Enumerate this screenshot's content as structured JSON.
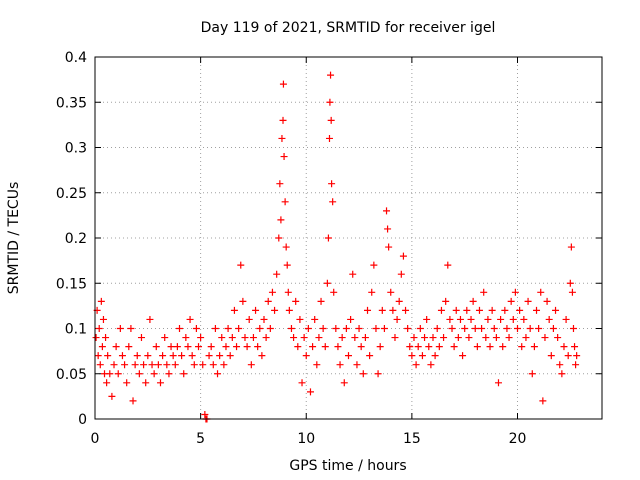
{
  "chart_data": {
    "type": "scatter",
    "title": "Day 119 of 2021, SRMTID for receiver igel",
    "xlabel": "GPS time / hours",
    "ylabel": "SRMTID / TECUs",
    "xlim": [
      0,
      24
    ],
    "ylim": [
      0,
      0.4
    ],
    "xticks": [
      0,
      5,
      10,
      15,
      20
    ],
    "xtick_labels": [
      "0",
      "5",
      "10",
      "15",
      "20"
    ],
    "yticks": [
      0,
      0.05,
      0.1,
      0.15,
      0.2,
      0.25,
      0.3,
      0.35,
      0.4
    ],
    "ytick_labels": [
      "0",
      "0.05",
      "0.1",
      "0.15",
      "0.2",
      "0.25",
      "0.3",
      "0.35",
      "0.4"
    ],
    "grid": true,
    "marker": "+",
    "series": [
      {
        "name": "SRMTID",
        "color": "#ff0000",
        "points": [
          [
            0.05,
            0.09
          ],
          [
            0.1,
            0.12
          ],
          [
            0.15,
            0.07
          ],
          [
            0.2,
            0.1
          ],
          [
            0.25,
            0.06
          ],
          [
            0.3,
            0.13
          ],
          [
            0.35,
            0.08
          ],
          [
            0.4,
            0.11
          ],
          [
            0.45,
            0.05
          ],
          [
            0.5,
            0.09
          ],
          [
            0.55,
            0.04
          ],
          [
            0.6,
            0.07
          ],
          [
            0.7,
            0.05
          ],
          [
            0.8,
            0.025
          ],
          [
            0.9,
            0.06
          ],
          [
            1.0,
            0.08
          ],
          [
            1.1,
            0.05
          ],
          [
            1.2,
            0.1
          ],
          [
            1.3,
            0.07
          ],
          [
            1.4,
            0.06
          ],
          [
            1.5,
            0.04
          ],
          [
            1.6,
            0.08
          ],
          [
            1.7,
            0.1
          ],
          [
            1.8,
            0.02
          ],
          [
            1.9,
            0.06
          ],
          [
            2.0,
            0.07
          ],
          [
            2.1,
            0.05
          ],
          [
            2.2,
            0.09
          ],
          [
            2.3,
            0.06
          ],
          [
            2.4,
            0.04
          ],
          [
            2.5,
            0.07
          ],
          [
            2.6,
            0.11
          ],
          [
            2.7,
            0.06
          ],
          [
            2.8,
            0.05
          ],
          [
            2.9,
            0.08
          ],
          [
            3.0,
            0.06
          ],
          [
            3.1,
            0.04
          ],
          [
            3.2,
            0.07
          ],
          [
            3.3,
            0.09
          ],
          [
            3.4,
            0.06
          ],
          [
            3.5,
            0.05
          ],
          [
            3.6,
            0.08
          ],
          [
            3.7,
            0.07
          ],
          [
            3.8,
            0.06
          ],
          [
            3.9,
            0.08
          ],
          [
            4.0,
            0.1
          ],
          [
            4.1,
            0.07
          ],
          [
            4.2,
            0.05
          ],
          [
            4.3,
            0.09
          ],
          [
            4.4,
            0.08
          ],
          [
            4.5,
            0.11
          ],
          [
            4.6,
            0.07
          ],
          [
            4.7,
            0.06
          ],
          [
            4.8,
            0.1
          ],
          [
            4.9,
            0.08
          ],
          [
            5.0,
            0.09
          ],
          [
            5.1,
            0.06
          ],
          [
            5.2,
            0.005
          ],
          [
            5.25,
            0.0
          ],
          [
            5.3,
            0.0
          ],
          [
            5.4,
            0.07
          ],
          [
            5.5,
            0.08
          ],
          [
            5.6,
            0.06
          ],
          [
            5.7,
            0.1
          ],
          [
            5.8,
            0.05
          ],
          [
            5.9,
            0.07
          ],
          [
            6.0,
            0.09
          ],
          [
            6.1,
            0.06
          ],
          [
            6.2,
            0.08
          ],
          [
            6.3,
            0.1
          ],
          [
            6.4,
            0.07
          ],
          [
            6.5,
            0.09
          ],
          [
            6.6,
            0.12
          ],
          [
            6.7,
            0.08
          ],
          [
            6.8,
            0.1
          ],
          [
            6.9,
            0.17
          ],
          [
            7.0,
            0.13
          ],
          [
            7.1,
            0.09
          ],
          [
            7.2,
            0.08
          ],
          [
            7.3,
            0.11
          ],
          [
            7.4,
            0.06
          ],
          [
            7.5,
            0.09
          ],
          [
            7.6,
            0.12
          ],
          [
            7.7,
            0.08
          ],
          [
            7.8,
            0.1
          ],
          [
            7.9,
            0.07
          ],
          [
            8.0,
            0.11
          ],
          [
            8.1,
            0.09
          ],
          [
            8.2,
            0.13
          ],
          [
            8.3,
            0.1
          ],
          [
            8.4,
            0.14
          ],
          [
            8.5,
            0.12
          ],
          [
            8.6,
            0.16
          ],
          [
            8.7,
            0.2
          ],
          [
            8.75,
            0.26
          ],
          [
            8.8,
            0.22
          ],
          [
            8.85,
            0.31
          ],
          [
            8.9,
            0.33
          ],
          [
            8.92,
            0.37
          ],
          [
            8.95,
            0.29
          ],
          [
            9.0,
            0.24
          ],
          [
            9.05,
            0.19
          ],
          [
            9.1,
            0.17
          ],
          [
            9.15,
            0.14
          ],
          [
            9.2,
            0.12
          ],
          [
            9.3,
            0.1
          ],
          [
            9.4,
            0.09
          ],
          [
            9.5,
            0.13
          ],
          [
            9.6,
            0.08
          ],
          [
            9.7,
            0.11
          ],
          [
            9.8,
            0.04
          ],
          [
            9.9,
            0.09
          ],
          [
            10.0,
            0.07
          ],
          [
            10.1,
            0.1
          ],
          [
            10.2,
            0.03
          ],
          [
            10.3,
            0.08
          ],
          [
            10.4,
            0.11
          ],
          [
            10.5,
            0.06
          ],
          [
            10.6,
            0.09
          ],
          [
            10.7,
            0.13
          ],
          [
            10.8,
            0.1
          ],
          [
            10.9,
            0.08
          ],
          [
            11.0,
            0.15
          ],
          [
            11.05,
            0.2
          ],
          [
            11.1,
            0.31
          ],
          [
            11.12,
            0.35
          ],
          [
            11.15,
            0.38
          ],
          [
            11.18,
            0.33
          ],
          [
            11.2,
            0.26
          ],
          [
            11.25,
            0.24
          ],
          [
            11.3,
            0.14
          ],
          [
            11.4,
            0.1
          ],
          [
            11.5,
            0.08
          ],
          [
            11.6,
            0.06
          ],
          [
            11.7,
            0.09
          ],
          [
            11.8,
            0.04
          ],
          [
            11.9,
            0.1
          ],
          [
            12.0,
            0.07
          ],
          [
            12.1,
            0.11
          ],
          [
            12.2,
            0.16
          ],
          [
            12.3,
            0.09
          ],
          [
            12.4,
            0.06
          ],
          [
            12.5,
            0.1
          ],
          [
            12.6,
            0.08
          ],
          [
            12.7,
            0.05
          ],
          [
            12.8,
            0.09
          ],
          [
            12.9,
            0.12
          ],
          [
            13.0,
            0.07
          ],
          [
            13.1,
            0.14
          ],
          [
            13.2,
            0.17
          ],
          [
            13.3,
            0.1
          ],
          [
            13.4,
            0.05
          ],
          [
            13.5,
            0.08
          ],
          [
            13.6,
            0.12
          ],
          [
            13.7,
            0.1
          ],
          [
            13.8,
            0.23
          ],
          [
            13.85,
            0.21
          ],
          [
            13.9,
            0.19
          ],
          [
            14.0,
            0.14
          ],
          [
            14.1,
            0.12
          ],
          [
            14.2,
            0.09
          ],
          [
            14.3,
            0.11
          ],
          [
            14.4,
            0.13
          ],
          [
            14.5,
            0.16
          ],
          [
            14.6,
            0.18
          ],
          [
            14.7,
            0.12
          ],
          [
            14.8,
            0.1
          ],
          [
            14.9,
            0.08
          ],
          [
            15.0,
            0.07
          ],
          [
            15.1,
            0.09
          ],
          [
            15.2,
            0.06
          ],
          [
            15.3,
            0.08
          ],
          [
            15.4,
            0.1
          ],
          [
            15.5,
            0.07
          ],
          [
            15.6,
            0.09
          ],
          [
            15.7,
            0.11
          ],
          [
            15.8,
            0.08
          ],
          [
            15.9,
            0.06
          ],
          [
            16.0,
            0.09
          ],
          [
            16.1,
            0.07
          ],
          [
            16.2,
            0.1
          ],
          [
            16.3,
            0.08
          ],
          [
            16.4,
            0.12
          ],
          [
            16.5,
            0.09
          ],
          [
            16.6,
            0.13
          ],
          [
            16.7,
            0.17
          ],
          [
            16.8,
            0.11
          ],
          [
            16.9,
            0.1
          ],
          [
            17.0,
            0.08
          ],
          [
            17.1,
            0.12
          ],
          [
            17.2,
            0.09
          ],
          [
            17.3,
            0.11
          ],
          [
            17.4,
            0.07
          ],
          [
            17.5,
            0.1
          ],
          [
            17.6,
            0.12
          ],
          [
            17.7,
            0.09
          ],
          [
            17.8,
            0.11
          ],
          [
            17.9,
            0.13
          ],
          [
            18.0,
            0.1
          ],
          [
            18.1,
            0.08
          ],
          [
            18.2,
            0.12
          ],
          [
            18.3,
            0.1
          ],
          [
            18.4,
            0.14
          ],
          [
            18.5,
            0.09
          ],
          [
            18.6,
            0.11
          ],
          [
            18.7,
            0.08
          ],
          [
            18.8,
            0.12
          ],
          [
            18.9,
            0.1
          ],
          [
            19.0,
            0.09
          ],
          [
            19.1,
            0.04
          ],
          [
            19.2,
            0.11
          ],
          [
            19.3,
            0.08
          ],
          [
            19.4,
            0.12
          ],
          [
            19.5,
            0.1
          ],
          [
            19.6,
            0.09
          ],
          [
            19.7,
            0.13
          ],
          [
            19.8,
            0.11
          ],
          [
            19.9,
            0.14
          ],
          [
            20.0,
            0.1
          ],
          [
            20.1,
            0.12
          ],
          [
            20.2,
            0.08
          ],
          [
            20.3,
            0.11
          ],
          [
            20.4,
            0.09
          ],
          [
            20.5,
            0.13
          ],
          [
            20.6,
            0.1
          ],
          [
            20.7,
            0.05
          ],
          [
            20.8,
            0.08
          ],
          [
            20.9,
            0.12
          ],
          [
            21.0,
            0.1
          ],
          [
            21.1,
            0.14
          ],
          [
            21.2,
            0.02
          ],
          [
            21.3,
            0.09
          ],
          [
            21.4,
            0.13
          ],
          [
            21.5,
            0.11
          ],
          [
            21.6,
            0.07
          ],
          [
            21.7,
            0.1
          ],
          [
            21.8,
            0.12
          ],
          [
            21.9,
            0.09
          ],
          [
            22.0,
            0.06
          ],
          [
            22.1,
            0.05
          ],
          [
            22.2,
            0.08
          ],
          [
            22.3,
            0.11
          ],
          [
            22.4,
            0.07
          ],
          [
            22.5,
            0.15
          ],
          [
            22.55,
            0.19
          ],
          [
            22.6,
            0.14
          ],
          [
            22.65,
            0.1
          ],
          [
            22.7,
            0.08
          ],
          [
            22.75,
            0.06
          ],
          [
            22.8,
            0.07
          ]
        ]
      }
    ]
  }
}
